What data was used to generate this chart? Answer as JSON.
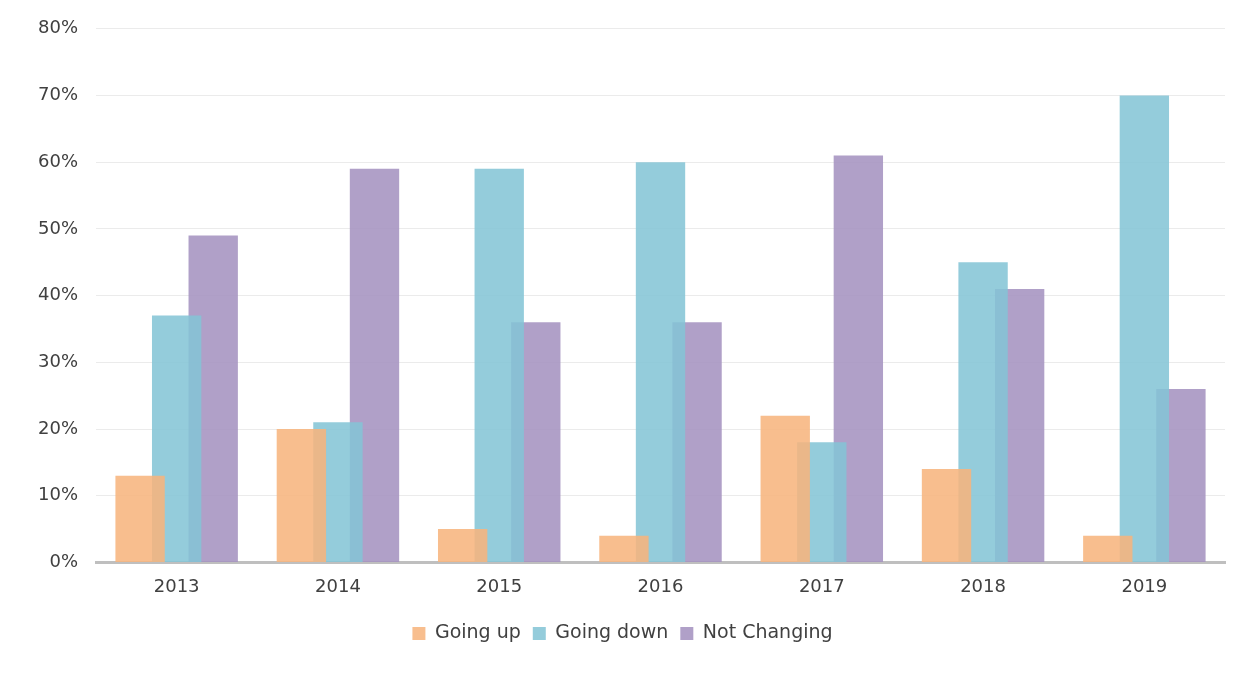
{
  "chart_data": {
    "type": "bar",
    "categories": [
      "2013",
      "2014",
      "2015",
      "2016",
      "2017",
      "2018",
      "2019"
    ],
    "series": [
      {
        "name": "Going up",
        "color": "#f7b47d",
        "values": [
          13,
          20,
          5,
          4,
          22,
          14,
          4
        ]
      },
      {
        "name": "Going down",
        "color": "#83c4d6",
        "values": [
          37,
          21,
          59,
          60,
          18,
          45,
          70
        ]
      },
      {
        "name": "Not Changing",
        "color": "#a491bf",
        "values": [
          49,
          59,
          36,
          36,
          61,
          41,
          26
        ]
      }
    ],
    "ylim": [
      0,
      80
    ],
    "yticks": [
      {
        "value": 0,
        "label": "0%"
      },
      {
        "value": 10,
        "label": "10%"
      },
      {
        "value": 20,
        "label": "20%"
      },
      {
        "value": 30,
        "label": "30%"
      },
      {
        "value": 40,
        "label": "40%"
      },
      {
        "value": 50,
        "label": "50%"
      },
      {
        "value": 60,
        "label": "60%"
      },
      {
        "value": 70,
        "label": "70%"
      },
      {
        "value": 80,
        "label": "80%"
      }
    ],
    "grid": "y",
    "legend": "bottom"
  }
}
